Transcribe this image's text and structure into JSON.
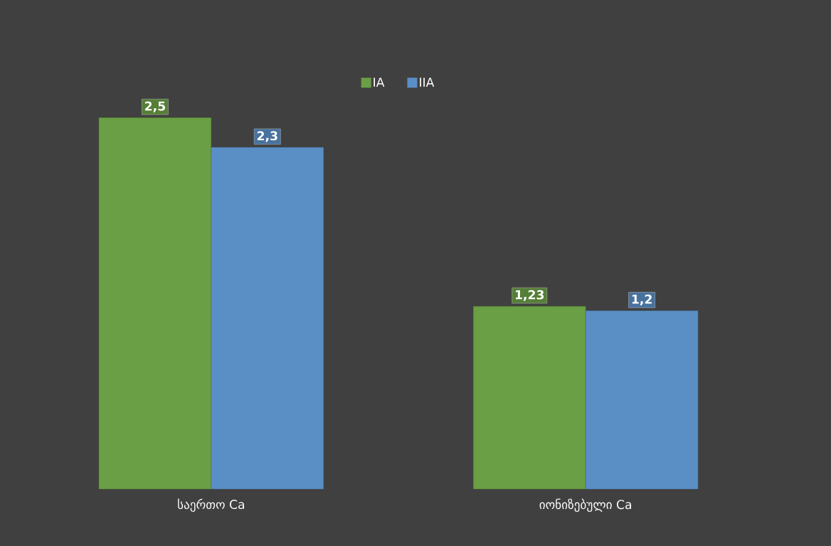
{
  "chart_data": {
    "type": "bar",
    "categories": [
      "საერთო Ca",
      "იონიზებული Ca"
    ],
    "series": [
      {
        "name": "IA",
        "color": "#6a9f45",
        "values": [
          2.5,
          1.23
        ],
        "value_labels": [
          "2,5",
          "1,23"
        ]
      },
      {
        "name": "IIA",
        "color": "#5a8fc6",
        "values": [
          2.3,
          1.2
        ],
        "value_labels": [
          "2,3",
          "1,2"
        ]
      }
    ],
    "legend": "top"
  }
}
